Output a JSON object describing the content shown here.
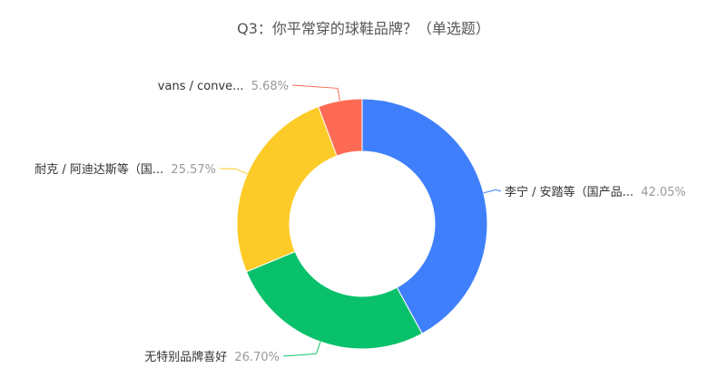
{
  "chart_data": {
    "type": "pie",
    "donut": true,
    "title": "Q3：你平常穿的球鞋品牌？（单选题）",
    "slices": [
      {
        "label": "李宁 / 安踏等（国产品...",
        "value": 42.05,
        "display": "42.05%",
        "color": "#3f7ffb"
      },
      {
        "label": "无特别品牌喜好",
        "value": 26.7,
        "display": "26.70%",
        "color": "#09c16b"
      },
      {
        "label": "耐克 / 阿迪达斯等（国...",
        "value": 25.57,
        "display": "25.57%",
        "color": "#fdcb27"
      },
      {
        "label": "vans / conve...",
        "value": 5.68,
        "display": "5.68%",
        "color": "#fd6a53"
      }
    ],
    "start_angle": "top",
    "direction": "clockwise",
    "legend": "none"
  }
}
